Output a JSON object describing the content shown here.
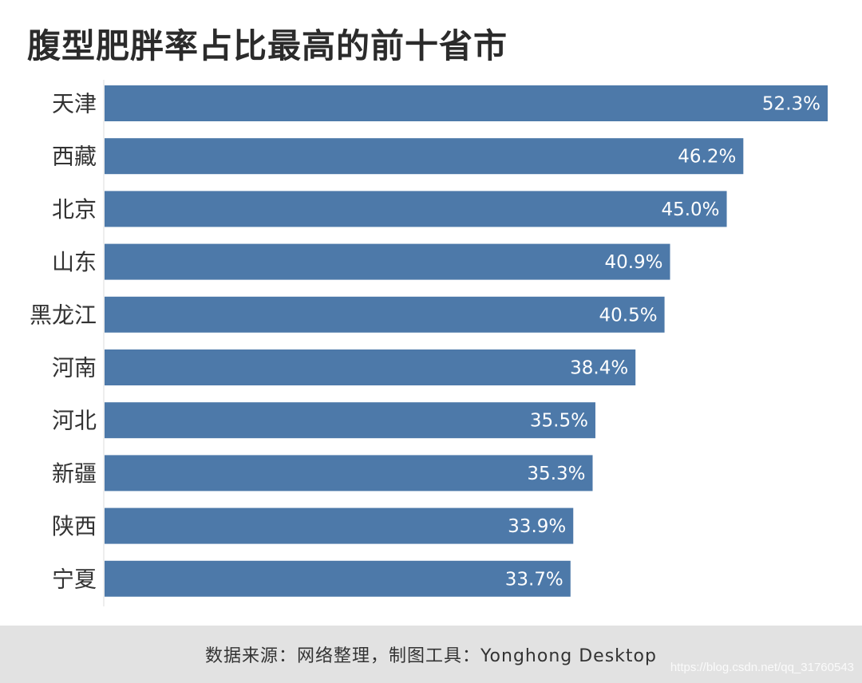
{
  "footer": {
    "source": "数据来源：网络整理，制图工具：Yonghong Desktop",
    "watermark": "https://blog.csdn.net/qq_31760543"
  },
  "colors": {
    "bar": "#4d79a9",
    "axis": "#dddddd"
  },
  "chart_data": {
    "type": "bar",
    "orientation": "horizontal",
    "title": "腹型肥胖率占比最高的前十省市",
    "categories": [
      "天津",
      "西藏",
      "北京",
      "山东",
      "黑龙江",
      "河南",
      "河北",
      "新疆",
      "陕西",
      "宁夏"
    ],
    "values": [
      52.3,
      46.2,
      45.0,
      40.9,
      40.5,
      38.4,
      35.5,
      35.3,
      33.9,
      33.7
    ],
    "labels": [
      "52.3%",
      "46.2%",
      "45.0%",
      "40.9%",
      "40.5%",
      "38.4%",
      "35.5%",
      "35.3%",
      "33.9%",
      "33.7%"
    ],
    "unit": "%",
    "xlim": [
      0,
      52.3
    ],
    "grid": false,
    "legend": "none"
  }
}
